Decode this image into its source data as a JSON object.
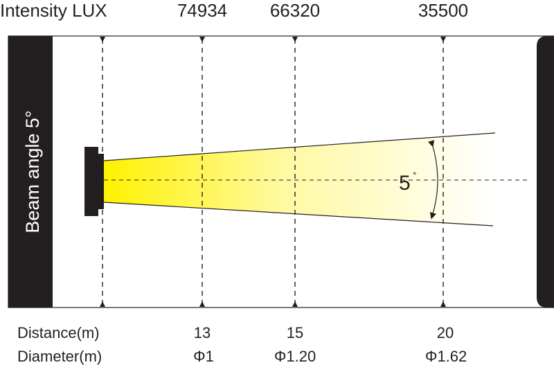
{
  "header": {
    "intensity_label": "Intensity LUX",
    "intensity_values": [
      "74934",
      "66320",
      "35500"
    ]
  },
  "side_label": "Beam angle 5°",
  "angle_label": "5",
  "angle_degree": "°",
  "footer": {
    "distance_label": "Distance(m)",
    "distances": [
      "13",
      "15",
      "20"
    ],
    "diameter_label": "Diameter(m)",
    "diameters": [
      "Φ1",
      "Φ1.20",
      "Φ1.62"
    ]
  },
  "colors": {
    "beam": "#fff200",
    "dark": "#231f20"
  }
}
